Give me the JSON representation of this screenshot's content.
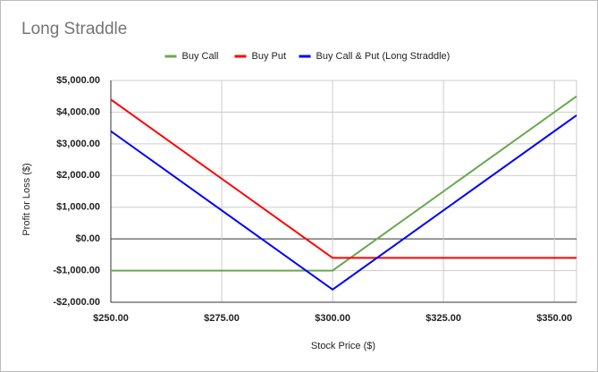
{
  "chart_data": {
    "type": "line",
    "title": "Long Straddle",
    "x_label": "Stock Price ($)",
    "y_label": "Profit or Loss ($)",
    "x": [
      250,
      300,
      355
    ],
    "series": [
      {
        "name": "Buy Call",
        "color": "#6aa84f",
        "values": [
          -1000,
          -1000,
          4500
        ]
      },
      {
        "name": "Buy Put",
        "color": "#ff0000",
        "values": [
          4400,
          -600,
          -600
        ]
      },
      {
        "name": "Buy Call & Put (Long Straddle)",
        "color": "#0000ff",
        "values": [
          3400,
          -1600,
          3900
        ]
      }
    ],
    "xlim": [
      250,
      355
    ],
    "xticks": [
      {
        "value": 250,
        "label": "$250.00"
      },
      {
        "value": 275,
        "label": "$275.00"
      },
      {
        "value": 300,
        "label": "$300.00"
      },
      {
        "value": 325,
        "label": "$325.00"
      },
      {
        "value": 350,
        "label": "$350.00"
      }
    ],
    "ylim": [
      -2000,
      5000
    ],
    "yticks": [
      {
        "value": -2000,
        "label": "-$2,000.00"
      },
      {
        "value": -1000,
        "label": "-$1,000.00"
      },
      {
        "value": 0,
        "label": "$0.00"
      },
      {
        "value": 1000,
        "label": "$1,000.00"
      },
      {
        "value": 2000,
        "label": "$2,000.00"
      },
      {
        "value": 3000,
        "label": "$3,000.00"
      },
      {
        "value": 4000,
        "label": "$4,000.00"
      },
      {
        "value": 5000,
        "label": "$5,000.00"
      }
    ],
    "grid": true,
    "legend": "top"
  }
}
